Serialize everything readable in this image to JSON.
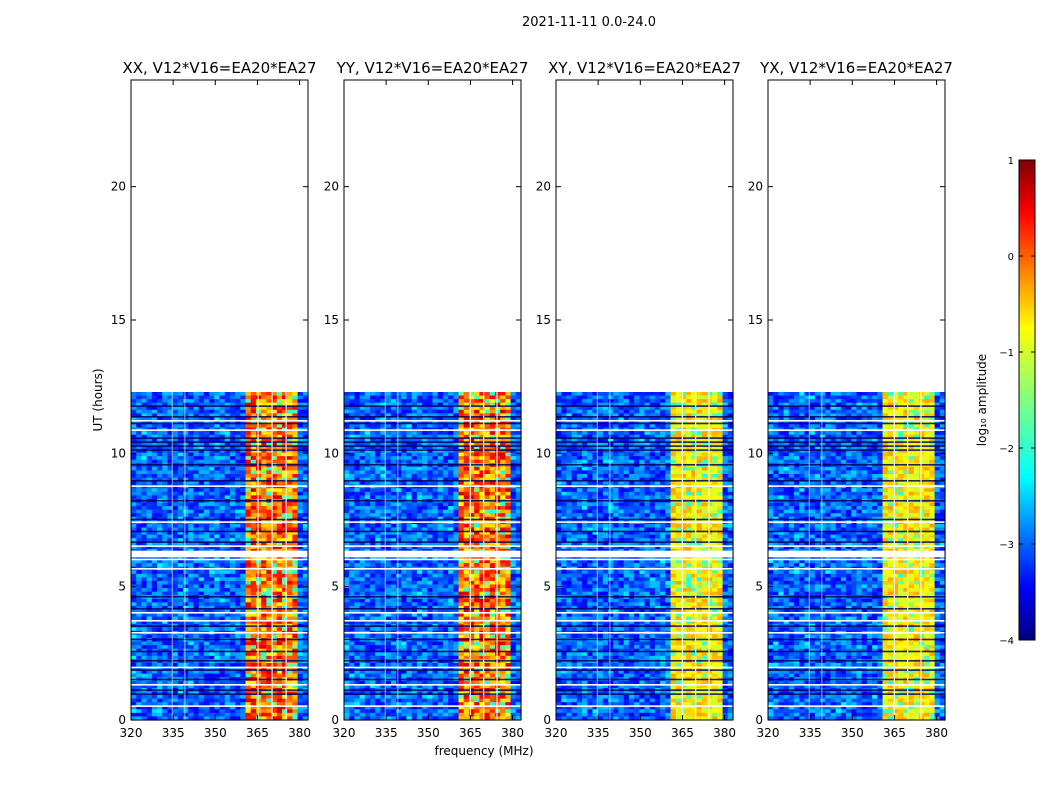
{
  "suptitle": "2021-11-11 0.0-24.0",
  "chart_data": {
    "type": "heatmap",
    "ylabel": "UT (hours)",
    "xlabel": "frequency (MHz)",
    "xlim": [
      320,
      383
    ],
    "ylim": [
      0,
      24
    ],
    "xticks": [
      320,
      335,
      350,
      365,
      380
    ],
    "yticks": [
      0,
      5,
      10,
      15,
      20
    ],
    "data_extent_hours": [
      0,
      12.3
    ],
    "panels": [
      {
        "title": "XX, V12*V16=EA20*EA27",
        "band_mhz": [
          360,
          380
        ],
        "band_level": "high"
      },
      {
        "title": "YY, V12*V16=EA20*EA27",
        "band_mhz": [
          360,
          379
        ],
        "band_level": "high"
      },
      {
        "title": "XY, V12*V16=EA20*EA27",
        "band_mhz": [
          360,
          379
        ],
        "band_level": "medium"
      },
      {
        "title": "YX, V12*V16=EA20*EA27",
        "band_mhz": [
          360,
          379
        ],
        "band_level": "medium"
      }
    ],
    "colorbar": {
      "label": "log₁₀ amplitude",
      "min": -4,
      "max": 1,
      "ticks": [
        1,
        0,
        -1,
        -2,
        -3,
        -4
      ],
      "tick_labels": [
        "1",
        "0",
        "−1",
        "−2",
        "−3",
        "−4"
      ],
      "colormap": "jet"
    }
  }
}
